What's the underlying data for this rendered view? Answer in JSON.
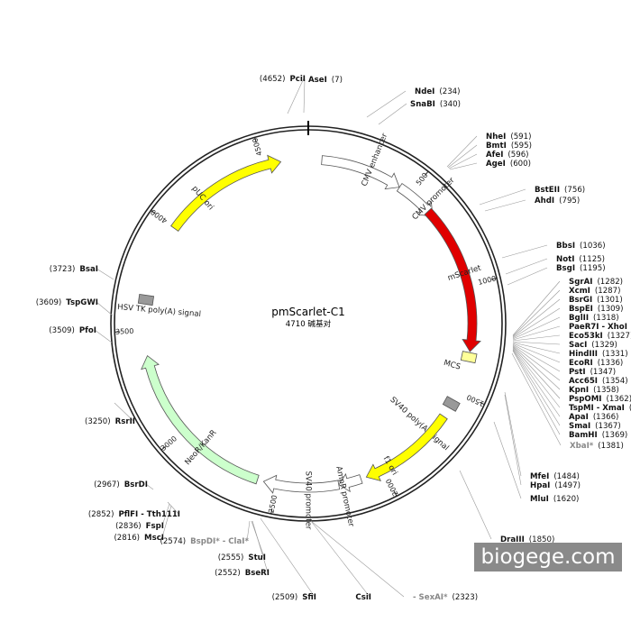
{
  "plasmid": {
    "name": "pmScarlet-C1",
    "size_label": "4710 碱基对",
    "length_bp": 4710
  },
  "watermark": "biogege.com",
  "ticks": [
    "500",
    "1000",
    "1500",
    "2000",
    "2500",
    "3000",
    "3500",
    "4000",
    "4500"
  ],
  "features": [
    {
      "name": "CMV enhancer",
      "start": 62,
      "end": 441,
      "color": "#ffffff",
      "kind": "arrow",
      "label_angle": 22
    },
    {
      "name": "CMV promoter",
      "start": 442,
      "end": 645,
      "color": "#ffffff",
      "kind": "arrow",
      "label_angle": 45
    },
    {
      "name": "mScarlet",
      "start": 613,
      "end": 1306,
      "color": "#e00000",
      "kind": "arrow",
      "label_angle": 72
    },
    {
      "name": "MCS",
      "start": 1282,
      "end": 1381,
      "color": "#ffff99",
      "kind": "box",
      "label_angle": 106
    },
    {
      "name": "SV40 poly(A) signal",
      "start": 1500,
      "end": 1621,
      "color": "#999999",
      "kind": "box",
      "label_angle": 132
    },
    {
      "name": "f1 ori",
      "start": 1628,
      "end": 2084,
      "color": "#ffff00",
      "kind": "arrow",
      "label_angle": 150
    },
    {
      "name": "AmpR promoter",
      "start": 2110,
      "end": 2214,
      "color": "#ffffff",
      "kind": "arrow",
      "label_angle": 168
    },
    {
      "name": "SV40 promoter",
      "start": 2215,
      "end": 2562,
      "color": "#ffffff",
      "kind": "arrow",
      "label_angle": 180
    },
    {
      "name": "NeoR/KanR",
      "start": 2591,
      "end": 3385,
      "color": "#ccffcc",
      "kind": "arrow",
      "label_angle": 221
    },
    {
      "name": "HSV TK poly(A) signal",
      "start": 3618,
      "end": 3666,
      "color": "#999999",
      "kind": "box",
      "label_angle": 275
    },
    {
      "name": "pUC ori",
      "start": 3996,
      "end": 4584,
      "color": "#ffff00",
      "kind": "arrow",
      "label_angle": 320
    }
  ],
  "sites": [
    {
      "name": "AseI",
      "pos": "(7)",
      "muted": false
    },
    {
      "name": "NdeI",
      "pos": "(234)",
      "muted": false
    },
    {
      "name": "SnaBI",
      "pos": "(340)",
      "muted": false
    },
    {
      "name": "NheI",
      "pos": "(591)",
      "muted": false
    },
    {
      "name": "BmtI",
      "pos": "(595)",
      "muted": false
    },
    {
      "name": "AfeI",
      "pos": "(596)",
      "muted": false
    },
    {
      "name": "AgeI",
      "pos": "(600)",
      "muted": false
    },
    {
      "name": "BstEII",
      "pos": "(756)",
      "muted": false
    },
    {
      "name": "AhdI",
      "pos": "(795)",
      "muted": false
    },
    {
      "name": "BbsI",
      "pos": "(1036)",
      "muted": false
    },
    {
      "name": "NotI",
      "pos": "(1125)",
      "muted": false
    },
    {
      "name": "BsgI",
      "pos": "(1195)",
      "muted": false
    },
    {
      "name": "SgrAI",
      "pos": "(1282)",
      "muted": false
    },
    {
      "name": "XcmI",
      "pos": "(1287)",
      "muted": false
    },
    {
      "name": "BsrGI",
      "pos": "(1301)",
      "muted": false
    },
    {
      "name": "BspEI",
      "pos": "(1309)",
      "muted": false
    },
    {
      "name": "BglII",
      "pos": "(1318)",
      "muted": false
    },
    {
      "name": "PaeR7I - XhoI",
      "pos": "(1322)",
      "muted": false
    },
    {
      "name": "Eco53kI",
      "pos": "(1327)",
      "muted": false
    },
    {
      "name": "SacI",
      "pos": "(1329)",
      "muted": false
    },
    {
      "name": "HindIII",
      "pos": "(1331)",
      "muted": false
    },
    {
      "name": "EcoRI",
      "pos": "(1336)",
      "muted": false
    },
    {
      "name": "PstI",
      "pos": "(1347)",
      "muted": false
    },
    {
      "name": "Acc65I",
      "pos": "(1354)",
      "muted": false
    },
    {
      "name": "KpnI",
      "pos": "(1358)",
      "muted": false
    },
    {
      "name": "PspOMI",
      "pos": "(1362)",
      "muted": false
    },
    {
      "name": "TspMI - XmaI",
      "pos": "(1365)",
      "muted": false
    },
    {
      "name": "ApaI",
      "pos": "(1366)",
      "muted": false
    },
    {
      "name": "SmaI",
      "pos": "(1367)",
      "muted": false
    },
    {
      "name": "BamHI",
      "pos": "(1369)",
      "muted": false
    },
    {
      "name": "XbaI*",
      "pos": "(1381)",
      "muted": true
    },
    {
      "name": "MfeI",
      "pos": "(1484)",
      "muted": false
    },
    {
      "name": "HpaI",
      "pos": "(1497)",
      "muted": false
    },
    {
      "name": "MluI",
      "pos": "(1620)",
      "muted": false
    },
    {
      "name": "DraIII",
      "pos": "(1850)",
      "muted": false
    },
    {
      "name": "CsiI",
      "pos": "",
      "muted": false
    },
    {
      "name": " - SexAI*",
      "pos": "(2323)",
      "muted": true
    },
    {
      "name": "SfiI",
      "pos": "(2509)",
      "muted": false
    },
    {
      "name": "BseRI",
      "pos": "(2552)",
      "muted": false
    },
    {
      "name": "StuI",
      "pos": "(2555)",
      "muted": false
    },
    {
      "name": "BspDI* - ClaI*",
      "pos": "(2574)",
      "muted": true
    },
    {
      "name": "MscI",
      "pos": "(2816)",
      "muted": false
    },
    {
      "name": "FspI",
      "pos": "(2836)",
      "muted": false
    },
    {
      "name": "PflFI - Tth111I",
      "pos": "(2852)",
      "muted": false
    },
    {
      "name": "BsrDI",
      "pos": "(2967)",
      "muted": false
    },
    {
      "name": "RsrII",
      "pos": "(3250)",
      "muted": false
    },
    {
      "name": "PfoI",
      "pos": "(3509)",
      "muted": false
    },
    {
      "name": "TspGWI",
      "pos": "(3609)",
      "muted": false
    },
    {
      "name": "BsaI",
      "pos": "(3723)",
      "muted": false
    },
    {
      "name": "PciI",
      "pos": "(4652)",
      "muted": false
    }
  ]
}
